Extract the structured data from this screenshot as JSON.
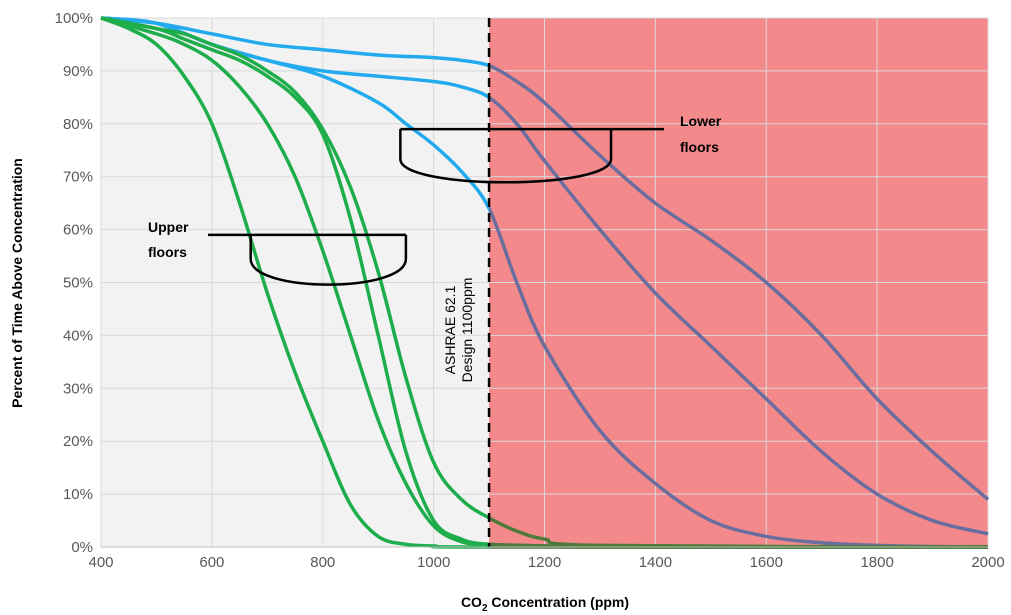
{
  "chart_data": {
    "type": "line",
    "xlabel_main": "CO",
    "xlabel_sub": "2",
    "xlabel_rest": " Concentration (ppm)",
    "ylabel": "Percent of Time Above Concentration",
    "xlim": [
      400,
      2000
    ],
    "ylim": [
      0,
      100
    ],
    "x_ticks": [
      400,
      600,
      800,
      1000,
      1200,
      1400,
      1600,
      1800,
      2000
    ],
    "y_ticks": [
      0,
      10,
      20,
      30,
      40,
      50,
      60,
      70,
      80,
      90,
      100
    ],
    "y_tick_labels": [
      "0%",
      "10%",
      "20%",
      "30%",
      "40%",
      "50%",
      "60%",
      "70%",
      "80%",
      "90%",
      "100%"
    ],
    "grid": true,
    "threshold": {
      "x": 1100,
      "label_line1": "ASHRAE 62.1",
      "label_line2": "Design 1100ppm",
      "below_color": "#f2f2f2",
      "above_color": "#f4898b"
    },
    "colors": {
      "upper_floors_below": "#1ead4b",
      "lower_floors_below": "#22aaee",
      "above_threshold": "#6a6e9e",
      "upper_floors_above": "#4d7a3a"
    },
    "annotations": [
      {
        "line1": "Upper",
        "line2": "floors",
        "bracket_x": [
          660,
          950
        ],
        "bracket_y": [
          59,
          49.5
        ]
      },
      {
        "line1": "Lower",
        "line2": "floors",
        "bracket_x": [
          940,
          1320
        ],
        "bracket_y": [
          79,
          69
        ]
      }
    ],
    "series": [
      {
        "group": "lower",
        "x": [
          400,
          500,
          600,
          700,
          800,
          900,
          1000,
          1050,
          1100,
          1150,
          1200,
          1300,
          1400,
          1500,
          1600,
          1700,
          1800,
          1900,
          2000
        ],
        "y": [
          100,
          99,
          97,
          95,
          94,
          93,
          92.5,
          92,
          91,
          88,
          84,
          74,
          65,
          58,
          50,
          40,
          28,
          18,
          9
        ]
      },
      {
        "group": "lower",
        "x": [
          400,
          500,
          600,
          700,
          800,
          900,
          1000,
          1050,
          1100,
          1150,
          1200,
          1300,
          1400,
          1500,
          1600,
          1700,
          1800,
          1900,
          2000
        ],
        "y": [
          100,
          99,
          95,
          92,
          90,
          89,
          88,
          87,
          85,
          80,
          73,
          60,
          48,
          38,
          28,
          18,
          10,
          5,
          2.5
        ]
      },
      {
        "group": "lower",
        "x": [
          400,
          500,
          600,
          700,
          800,
          900,
          950,
          1000,
          1050,
          1100,
          1150,
          1200,
          1300,
          1400,
          1500,
          1600,
          1700,
          1800,
          1900,
          2000
        ],
        "y": [
          100,
          99,
          95,
          92,
          89,
          84,
          80,
          76,
          71,
          64,
          50,
          38,
          22,
          12,
          5,
          2,
          0.8,
          0.3,
          0.1,
          0
        ]
      },
      {
        "group": "upper",
        "x": [
          400,
          500,
          550,
          600,
          650,
          700,
          750,
          800,
          850,
          900,
          950,
          1000,
          1050,
          1100,
          1200,
          1300,
          2000
        ],
        "y": [
          100,
          97,
          95,
          92,
          87,
          80,
          70,
          56,
          40,
          24,
          12,
          4,
          1,
          0.5,
          0.2,
          0,
          0
        ]
      },
      {
        "group": "upper",
        "x": [
          400,
          450,
          500,
          550,
          600,
          650,
          700,
          750,
          800,
          850,
          900,
          950,
          1000,
          1050,
          1100,
          1150,
          1200,
          1300,
          2000
        ],
        "y": [
          100,
          99,
          98,
          97,
          95,
          93,
          90,
          86,
          79,
          68,
          52,
          32,
          16,
          9,
          5.5,
          3,
          1.5,
          0.3,
          0
        ]
      },
      {
        "group": "upper",
        "x": [
          400,
          500,
          550,
          600,
          650,
          700,
          750,
          800,
          850,
          900,
          950,
          1000,
          1050,
          1100,
          1200,
          1300,
          2000
        ],
        "y": [
          100,
          98,
          96,
          94,
          92,
          89,
          85,
          78,
          62,
          40,
          18,
          5,
          1.5,
          0.5,
          0.2,
          0,
          0
        ]
      },
      {
        "group": "upper",
        "x": [
          400,
          450,
          500,
          550,
          600,
          650,
          700,
          750,
          800,
          850,
          900,
          950,
          1000,
          1100,
          2000
        ],
        "y": [
          100,
          98,
          95,
          89,
          80,
          65,
          48,
          33,
          20,
          8,
          2,
          0.5,
          0.2,
          0,
          0
        ]
      }
    ]
  }
}
